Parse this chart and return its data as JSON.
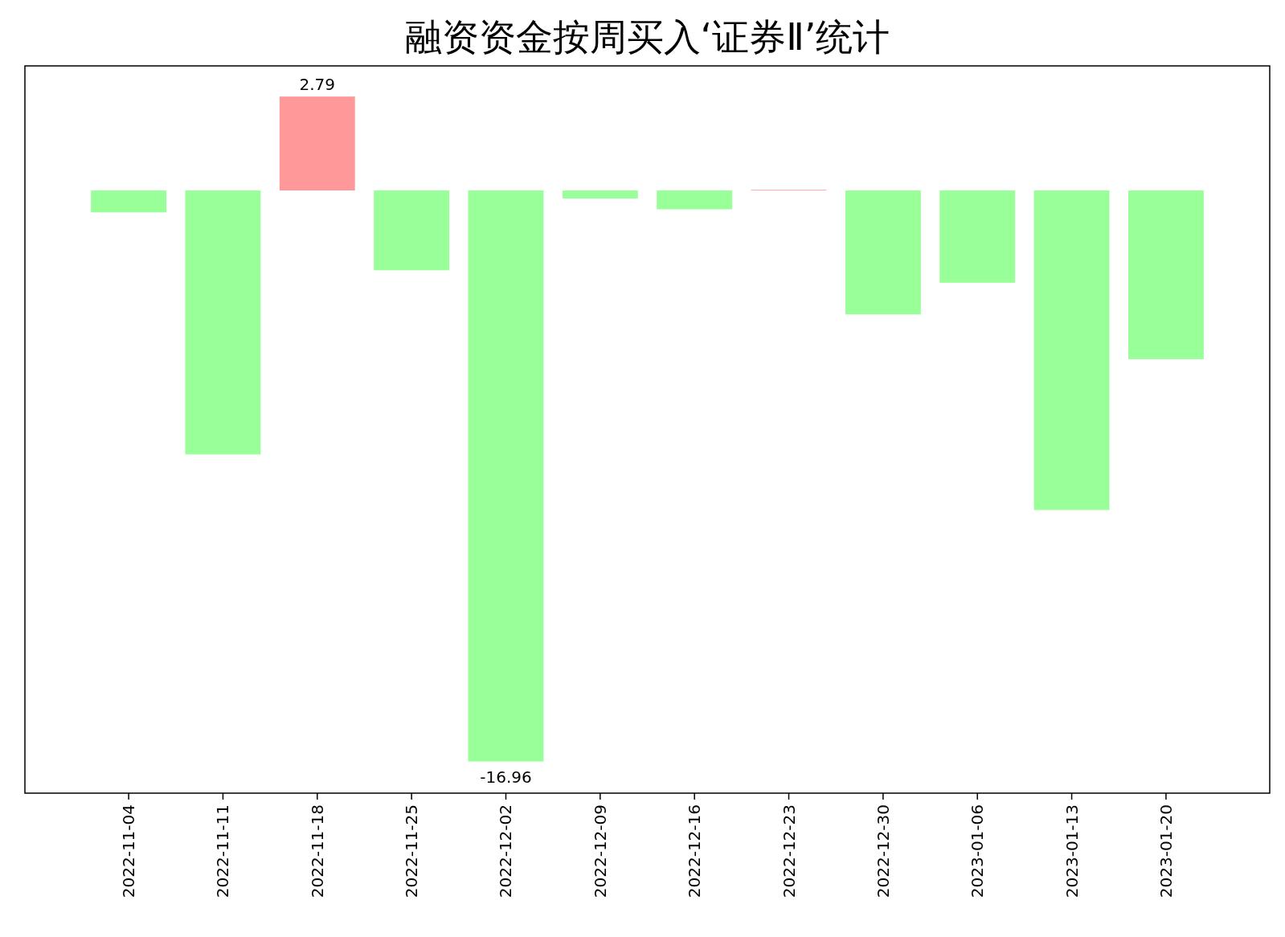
{
  "chart_data": {
    "type": "bar",
    "title": "融资资金按周买入‘证券Ⅱ’统计",
    "categories": [
      "2022-11-04",
      "2022-11-11",
      "2022-11-18",
      "2022-11-25",
      "2022-12-02",
      "2022-12-09",
      "2022-12-16",
      "2022-12-23",
      "2022-12-30",
      "2023-01-06",
      "2023-01-13",
      "2023-01-20"
    ],
    "values": [
      -0.65,
      -7.84,
      2.79,
      -2.37,
      -16.96,
      -0.24,
      -0.56,
      0.02,
      -3.68,
      -2.74,
      -9.49,
      -5.01
    ],
    "colors": [
      "#99ff99",
      "#99ff99",
      "#ff9999",
      "#99ff99",
      "#99ff99",
      "#99ff99",
      "#99ff99",
      "#ff9999",
      "#99ff99",
      "#99ff99",
      "#99ff99",
      "#99ff99"
    ],
    "value_labels": [
      null,
      null,
      "2.79",
      null,
      "-16.96",
      null,
      null,
      null,
      null,
      null,
      null,
      null
    ],
    "ylim": [
      -17.9,
      3.7
    ],
    "tick_labels": "x"
  }
}
